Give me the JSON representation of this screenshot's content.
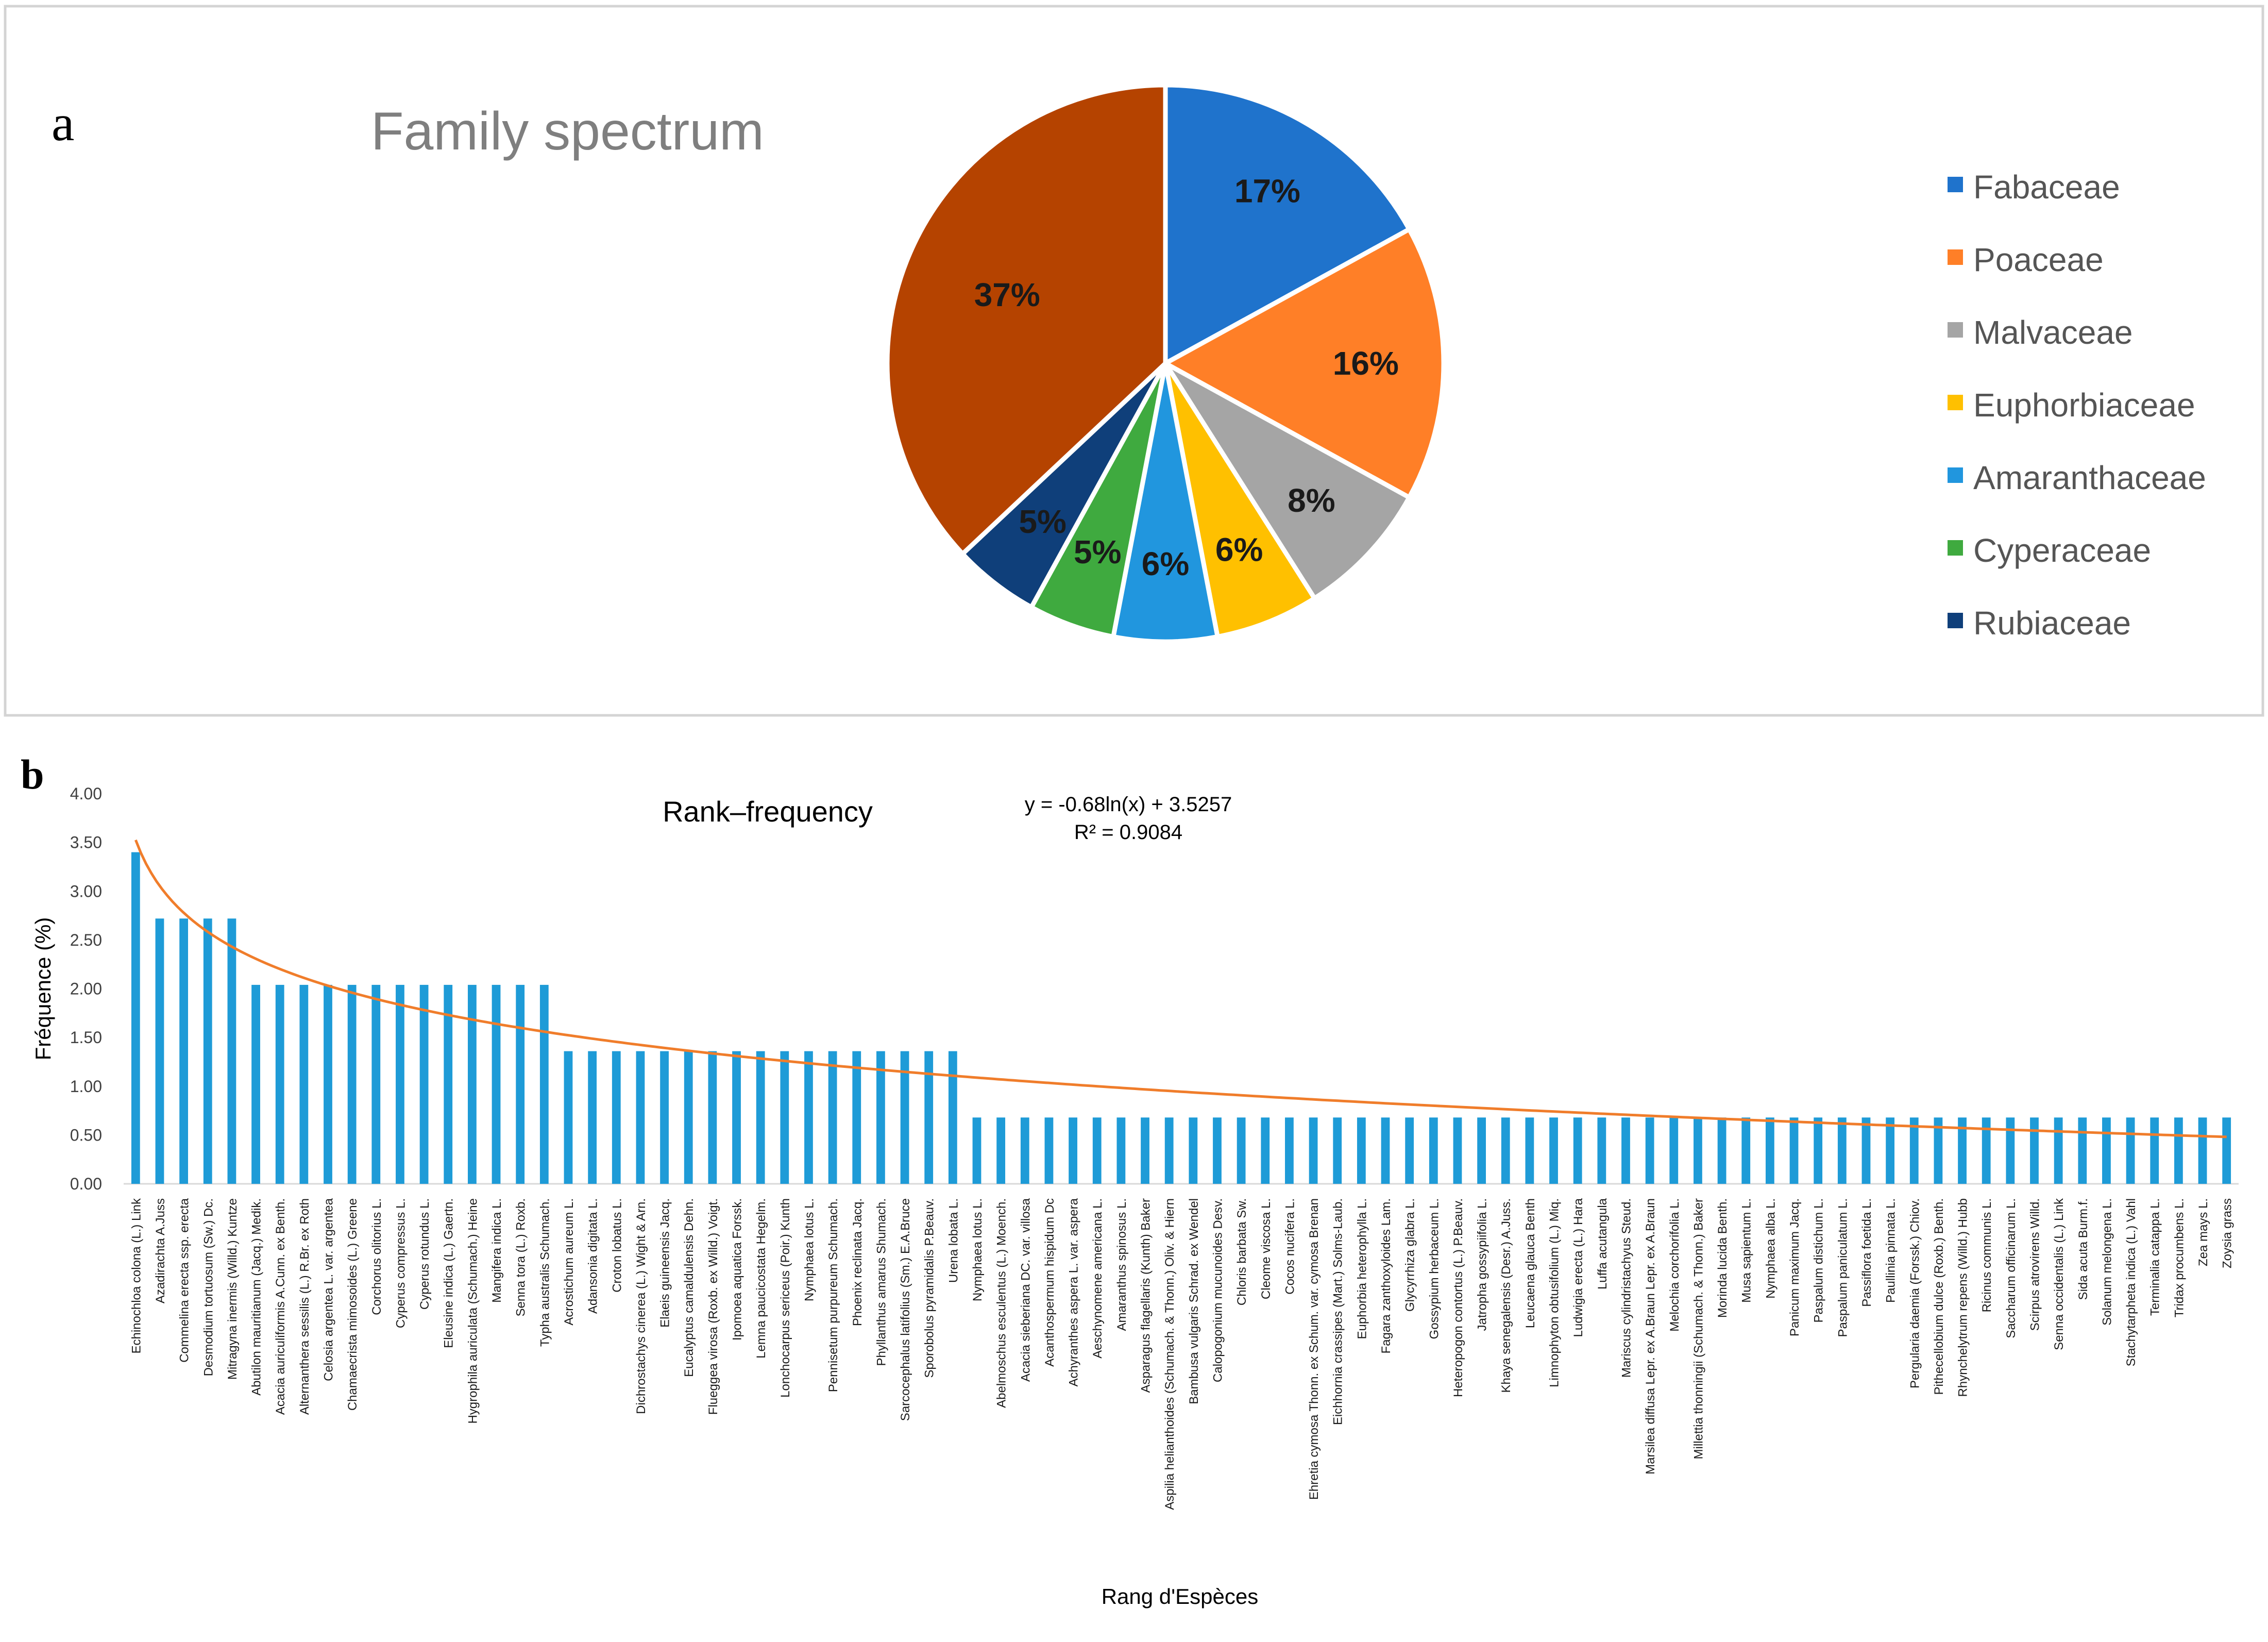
{
  "panels": {
    "a_letter": "a",
    "b_letter": "b"
  },
  "chart_data": [
    {
      "type": "pie",
      "title": "Family spectrum",
      "slices": [
        {
          "label": "Fabaceae",
          "value": 17,
          "display": "17%",
          "color": "#1F73CC"
        },
        {
          "label": "Poaceae",
          "value": 16,
          "display": "16%",
          "color": "#FF7F27"
        },
        {
          "label": "Malvaceae",
          "value": 8,
          "display": "8%",
          "color": "#A5A5A5"
        },
        {
          "label": "Euphorbiaceae",
          "value": 6,
          "display": "6%",
          "color": "#FFC000"
        },
        {
          "label": "Amaranthaceae",
          "value": 6,
          "display": "6%",
          "color": "#2196DE"
        },
        {
          "label": "Cyperaceae",
          "value": 5,
          "display": "5%",
          "color": "#3FAA3F"
        },
        {
          "label": "Rubiaceae",
          "value": 5,
          "display": "5%",
          "color": "#0F3F7A"
        },
        {
          "label": "",
          "value": 37,
          "display": "37%",
          "color": "#B54300"
        }
      ],
      "legend_entries": [
        "Fabaceae",
        "Poaceae",
        "Malvaceae",
        "Euphorbiaceae",
        "Amaranthaceae",
        "Cyperaceae",
        "Rubiaceae"
      ],
      "legend_position": "right"
    },
    {
      "type": "bar",
      "title": "Rank–frequency",
      "xlabel": "Rang d'Espèces",
      "ylabel": "Fréquence  (%)",
      "ylim": [
        0,
        4
      ],
      "yticks": [
        "0.00",
        "0.50",
        "1.00",
        "1.50",
        "2.00",
        "2.50",
        "3.00",
        "3.50",
        "4.00"
      ],
      "bar_color": "#1E9BD7",
      "trendline": {
        "type": "logarithmic",
        "a": -0.68,
        "b": 3.5257,
        "equation": "y = -0.68ln(x) + 3.5257",
        "r2": "R² = 0.9084",
        "color": "#F07D2B"
      },
      "categories": [
        "Echinochloa colona (L.) Link",
        "Azadirachta A.Juss",
        "Commelina erecta ssp. erecta",
        "Desmodium tortuosum (Sw.) Dc.",
        "Mitragyna inermis (Willd.) Kuntze",
        "Abutilon mauritianum (Jacq.) Medik.",
        "Acacia auriculiformis A.Cunn. ex Benth.",
        "Alternanthera sessilis (L.) R.Br. ex Roth",
        "Celosia argentea L. var. argentea",
        "Chamaecrista mimosoides (L.) Greene",
        "Corchorus olitorius L.",
        "Cyperus compressus L.",
        "Cyperus rotundus L.",
        "Eleusine indica (L.) Gaertn.",
        "Hygrophila auriculata (Schumach.) Heine",
        "Mangifera indica L.",
        "Senna tora (L.) Roxb.",
        "Typha australis Schumach.",
        "Acrostichum aureum L.",
        "Adansonia digitata L.",
        "Croton lobatus L.",
        "Dichrostachys cinerea (L.) Wight & Arn.",
        "Elaeis guineensis Jacq.",
        "Eucalyptus camaldulensis Dehn.",
        "Flueggea virosa (Roxb. ex Willd.) Voigt.",
        "Ipomoea aquatica Forssk.",
        "Lemna paucicostata Hegelm.",
        "Lonchocarpus sericeus (Poir.) Kunth",
        "Nymphaea lotus L.",
        "Pennisetum purpureum Schumach.",
        "Phoenix reclinata Jacq.",
        "Phyllanthus amarus Shumach.",
        "Sarcocephalus latifolius (Sm.) E.A.Bruce",
        "Sporobolus pyramidalis P.Beauv.",
        "Urena lobata L.",
        "Nymphaea lotus L.",
        "Abelmoschus esculentus (L.) Moench.",
        "Acacia sieberiana DC. var. villosa",
        "Acanthospermum hispidum Dc",
        "Achyranthes aspera L. var. aspera",
        "Aeschynomene americana L.",
        "Amaranthus spinosus L.",
        "Asparagus flagellaris (Kunth) Baker",
        "Aspilia helianthoides (Schumach. & Thonn.) Oliv. & Hiern",
        "Bambusa vulgaris Schrad. ex Wendel",
        "Calopogonium mucunoides Desv.",
        "Chloris barbata Sw.",
        "Cleome viscosa L.",
        "Cocos nucifera L.",
        "Ehretia cymosa Thonn. ex Schum. var. cymosa Brenan",
        "Eichhornia crassipes (Mart.) Solms-Laub.",
        "Euphorbia heterophylla L.",
        "Fagara zanthoxyloides Lam.",
        "Glycyrrhiza glabra L.",
        "Gossypium herbaceum L.",
        "Heteropogon contortus (L.) P.Beauv.",
        "Jatropha gossypiifolia L.",
        "Khaya senegalensis (Desr.) A.Juss.",
        "Leucaena glauca Benth",
        "Limnophyton obtusifolium (L.) Miq.",
        "Ludwigia erecta (L.) Hara",
        "Luffa acutangula",
        "Mariscus cylindristachyus Steud.",
        "Marsilea diffusa Lepr. ex A.Braun Lepr. ex A.Braun",
        "Melochia corchorifolia L.",
        "Millettia thonningii (Schumach. & Thonn.) Baker",
        "Morinda lucida Benth.",
        "Musa sapientum L.",
        "Nymphaea alba L.",
        "Panicum maximum Jacq.",
        "Paspalum distichum L.",
        "Paspalum paniculatum L.",
        "Passiflora foetida L.",
        "Paullinia pinnata L.",
        "Pergularia daemia (Forssk.) Chiov.",
        "Pithecellobium dulce (Roxb.) Benth.",
        "Rhynchelytrum repens (Willd.) Hubb",
        "Ricinus communis L.",
        "Saccharum officinarum L.",
        "Scirpus atrovirens Willd.",
        "Senna occidentalis (L.) Link",
        "Sida acuta Burm.f.",
        "Solanum melongena L.",
        "Stachytarpheta indica (L.) Vahl",
        "Terminalia catappa L.",
        "Tridax procumbens L.",
        "Zea mays L.",
        "Zoysia grass"
      ],
      "values": [
        3.4,
        2.72,
        2.72,
        2.72,
        2.72,
        2.04,
        2.04,
        2.04,
        2.04,
        2.04,
        2.04,
        2.04,
        2.04,
        2.04,
        2.04,
        2.04,
        2.04,
        2.04,
        1.36,
        1.36,
        1.36,
        1.36,
        1.36,
        1.36,
        1.36,
        1.36,
        1.36,
        1.36,
        1.36,
        1.36,
        1.36,
        1.36,
        1.36,
        1.36,
        1.36,
        0.68,
        0.68,
        0.68,
        0.68,
        0.68,
        0.68,
        0.68,
        0.68,
        0.68,
        0.68,
        0.68,
        0.68,
        0.68,
        0.68,
        0.68,
        0.68,
        0.68,
        0.68,
        0.68,
        0.68,
        0.68,
        0.68,
        0.68,
        0.68,
        0.68,
        0.68,
        0.68,
        0.68,
        0.68,
        0.68,
        0.68,
        0.68,
        0.68,
        0.68,
        0.68,
        0.68,
        0.68,
        0.68,
        0.68,
        0.68,
        0.68,
        0.68,
        0.68,
        0.68,
        0.68,
        0.68,
        0.68,
        0.68,
        0.68,
        0.68,
        0.68,
        0.68,
        0.68
      ]
    }
  ]
}
